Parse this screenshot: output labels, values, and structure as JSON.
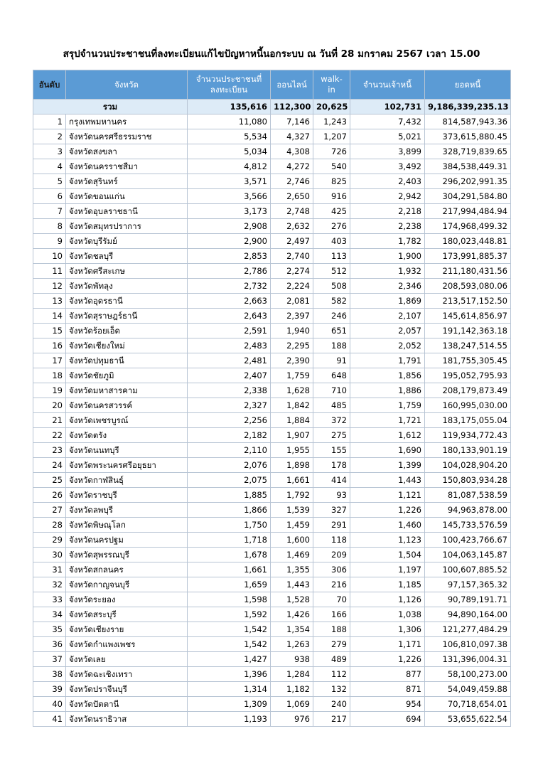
{
  "title": "สรุปจำนวนประชาชนที่ลงทะเบียนแก้ไขปัญหาหนี้นอกระบบ ณ วันที่ 28 มกราคม 2567 เวลา 15.00",
  "table": {
    "headers": [
      [
        "อันดับ"
      ],
      [
        "จังหวัด"
      ],
      [
        "จำนวนประชาชนที่",
        "ลงทะเบียน"
      ],
      [
        "ออนไลน์"
      ],
      [
        "walk-",
        "in"
      ],
      [
        "จำนวนเจ้าหนี้"
      ],
      [
        "ยอดหนี้"
      ]
    ],
    "total": {
      "label": "รวม",
      "values": [
        "135,616",
        "112,300",
        "20,625",
        "102,731",
        "9,186,339,235.13"
      ]
    },
    "rows": [
      [
        "1",
        "กรุงเทพมหานคร",
        "11,080",
        "7,146",
        "1,243",
        "7,432",
        "814,587,943.36"
      ],
      [
        "2",
        "จังหวัดนครศรีธรรมราช",
        "5,534",
        "4,327",
        "1,207",
        "5,021",
        "373,615,880.45"
      ],
      [
        "3",
        "จังหวัดสงขลา",
        "5,034",
        "4,308",
        "726",
        "3,899",
        "328,719,839.65"
      ],
      [
        "4",
        "จังหวัดนครราชสีมา",
        "4,812",
        "4,272",
        "540",
        "3,492",
        "384,538,449.31"
      ],
      [
        "5",
        "จังหวัดสุรินทร์",
        "3,571",
        "2,746",
        "825",
        "2,403",
        "296,202,991.35"
      ],
      [
        "6",
        "จังหวัดขอนแก่น",
        "3,566",
        "2,650",
        "916",
        "2,942",
        "304,291,584.80"
      ],
      [
        "7",
        "จังหวัดอุบลราชธานี",
        "3,173",
        "2,748",
        "425",
        "2,218",
        "217,994,484.94"
      ],
      [
        "8",
        "จังหวัดสมุทรปราการ",
        "2,908",
        "2,632",
        "276",
        "2,238",
        "174,968,499.32"
      ],
      [
        "9",
        "จังหวัดบุรีรัมย์",
        "2,900",
        "2,497",
        "403",
        "1,782",
        "180,023,448.81"
      ],
      [
        "10",
        "จังหวัดชลบุรี",
        "2,853",
        "2,740",
        "113",
        "1,900",
        "173,991,885.37"
      ],
      [
        "11",
        "จังหวัดศรีสะเกษ",
        "2,786",
        "2,274",
        "512",
        "1,932",
        "211,180,431.56"
      ],
      [
        "12",
        "จังหวัดพัทลุง",
        "2,732",
        "2,224",
        "508",
        "2,346",
        "208,593,080.06"
      ],
      [
        "13",
        "จังหวัดอุดรธานี",
        "2,663",
        "2,081",
        "582",
        "1,869",
        "213,517,152.50"
      ],
      [
        "14",
        "จังหวัดสุราษฎร์ธานี",
        "2,643",
        "2,397",
        "246",
        "2,107",
        "145,614,856.97"
      ],
      [
        "15",
        "จังหวัดร้อยเอ็ด",
        "2,591",
        "1,940",
        "651",
        "2,057",
        "191,142,363.18"
      ],
      [
        "16",
        "จังหวัดเชียงใหม่",
        "2,483",
        "2,295",
        "188",
        "2,052",
        "138,247,514.55"
      ],
      [
        "17",
        "จังหวัดปทุมธานี",
        "2,481",
        "2,390",
        "91",
        "1,791",
        "181,755,305.45"
      ],
      [
        "18",
        "จังหวัดชัยภูมิ",
        "2,407",
        "1,759",
        "648",
        "1,856",
        "195,052,795.93"
      ],
      [
        "19",
        "จังหวัดมหาสารคาม",
        "2,338",
        "1,628",
        "710",
        "1,886",
        "208,179,873.49"
      ],
      [
        "20",
        "จังหวัดนครสวรรค์",
        "2,327",
        "1,842",
        "485",
        "1,759",
        "160,995,030.00"
      ],
      [
        "21",
        "จังหวัดเพชรบูรณ์",
        "2,256",
        "1,884",
        "372",
        "1,721",
        "183,175,055.04"
      ],
      [
        "22",
        "จังหวัดตรัง",
        "2,182",
        "1,907",
        "275",
        "1,612",
        "119,934,772.43"
      ],
      [
        "23",
        "จังหวัดนนทบุรี",
        "2,110",
        "1,955",
        "155",
        "1,690",
        "180,133,901.19"
      ],
      [
        "24",
        "จังหวัดพระนครศรีอยุธยา",
        "2,076",
        "1,898",
        "178",
        "1,399",
        "104,028,904.20"
      ],
      [
        "25",
        "จังหวัดกาฬสินธุ์",
        "2,075",
        "1,661",
        "414",
        "1,443",
        "150,803,934.28"
      ],
      [
        "26",
        "จังหวัดราชบุรี",
        "1,885",
        "1,792",
        "93",
        "1,121",
        "81,087,538.59"
      ],
      [
        "27",
        "จังหวัดลพบุรี",
        "1,866",
        "1,539",
        "327",
        "1,226",
        "94,963,878.00"
      ],
      [
        "28",
        "จังหวัดพิษณุโลก",
        "1,750",
        "1,459",
        "291",
        "1,460",
        "145,733,576.59"
      ],
      [
        "29",
        "จังหวัดนครปฐม",
        "1,718",
        "1,600",
        "118",
        "1,123",
        "100,423,766.67"
      ],
      [
        "30",
        "จังหวัดสุพรรณบุรี",
        "1,678",
        "1,469",
        "209",
        "1,504",
        "104,063,145.87"
      ],
      [
        "31",
        "จังหวัดสกลนคร",
        "1,661",
        "1,355",
        "306",
        "1,197",
        "100,607,885.52"
      ],
      [
        "32",
        "จังหวัดกาญจนบุรี",
        "1,659",
        "1,443",
        "216",
        "1,185",
        "97,157,365.32"
      ],
      [
        "33",
        "จังหวัดระยอง",
        "1,598",
        "1,528",
        "70",
        "1,126",
        "90,789,191.71"
      ],
      [
        "34",
        "จังหวัดสระบุรี",
        "1,592",
        "1,426",
        "166",
        "1,038",
        "94,890,164.00"
      ],
      [
        "35",
        "จังหวัดเชียงราย",
        "1,542",
        "1,354",
        "188",
        "1,306",
        "121,277,484.29"
      ],
      [
        "36",
        "จังหวัดกำแพงเพชร",
        "1,542",
        "1,263",
        "279",
        "1,171",
        "106,810,097.38"
      ],
      [
        "37",
        "จังหวัดเลย",
        "1,427",
        "938",
        "489",
        "1,226",
        "131,396,004.31"
      ],
      [
        "38",
        "จังหวัดฉะเชิงเทรา",
        "1,396",
        "1,284",
        "112",
        "877",
        "58,100,273.00"
      ],
      [
        "39",
        "จังหวัดปราจีนบุรี",
        "1,314",
        "1,182",
        "132",
        "871",
        "54,049,459.88"
      ],
      [
        "40",
        "จังหวัดปัตตานี",
        "1,309",
        "1,069",
        "240",
        "954",
        "70,718,654.01"
      ],
      [
        "41",
        "จังหวัดนราธิวาส",
        "1,193",
        "976",
        "217",
        "694",
        "53,655,622.54"
      ]
    ]
  }
}
